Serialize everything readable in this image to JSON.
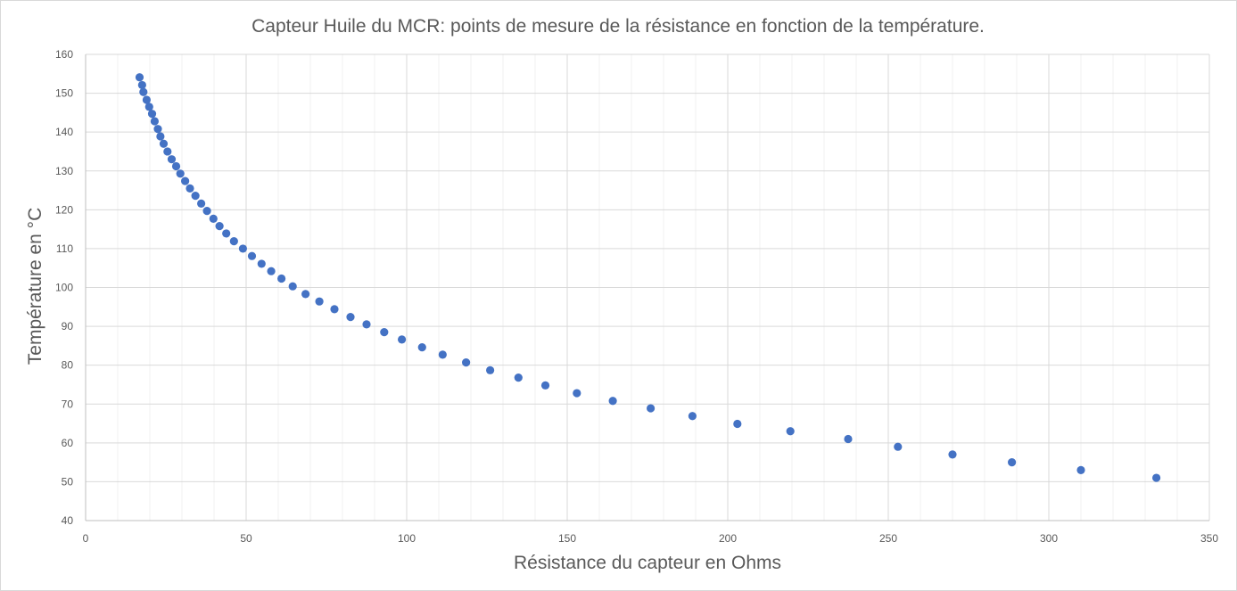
{
  "chart_data": {
    "type": "scatter",
    "title": "Capteur Huile du MCR: points de mesure de la résistance en fonction de la température.",
    "xlabel": "Résistance du capteur en Ohms",
    "ylabel": "Température en °C",
    "xlim": [
      0,
      350
    ],
    "ylim": [
      40,
      160
    ],
    "xticks": [
      0,
      50,
      100,
      150,
      200,
      250,
      300,
      350
    ],
    "yticks": [
      40,
      50,
      60,
      70,
      80,
      90,
      100,
      110,
      120,
      130,
      140,
      150,
      160
    ],
    "x_minor_step": 10,
    "grid": true,
    "legend": "none",
    "marker_color": "#4472c4",
    "series": [
      {
        "x": [
          16.8,
          17.6,
          18.0,
          19.0,
          19.8,
          20.7,
          21.5,
          22.5,
          23.3,
          24.3,
          25.5,
          26.8,
          28.2,
          29.5,
          31.0,
          32.5,
          34.2,
          36.0,
          37.8,
          39.8,
          41.7,
          43.8,
          46.2,
          49.0,
          51.8,
          54.8,
          57.8,
          61.0,
          64.5,
          68.5,
          72.8,
          77.5,
          82.5,
          87.5,
          93.0,
          98.5,
          104.8,
          111.2,
          118.5,
          126.0,
          134.8,
          143.2,
          153.0,
          164.2,
          176.0,
          189.0,
          203.0,
          219.5,
          237.5,
          253.0,
          270.0,
          288.5,
          310.0,
          333.5
        ],
        "y": [
          154.1,
          152.1,
          150.3,
          148.3,
          146.5,
          144.7,
          142.8,
          140.8,
          138.9,
          137.0,
          135.0,
          133.0,
          131.2,
          129.3,
          127.4,
          125.5,
          123.6,
          121.6,
          119.7,
          117.7,
          115.8,
          113.9,
          111.9,
          110.0,
          108.1,
          106.1,
          104.2,
          102.3,
          100.3,
          98.3,
          96.4,
          94.4,
          92.4,
          90.5,
          88.5,
          86.6,
          84.6,
          82.7,
          80.7,
          78.7,
          76.8,
          74.8,
          72.8,
          70.8,
          68.9,
          66.9,
          64.9,
          63.0,
          61.0,
          59.0,
          57.0,
          55.0,
          53.0,
          51.0
        ]
      }
    ]
  }
}
